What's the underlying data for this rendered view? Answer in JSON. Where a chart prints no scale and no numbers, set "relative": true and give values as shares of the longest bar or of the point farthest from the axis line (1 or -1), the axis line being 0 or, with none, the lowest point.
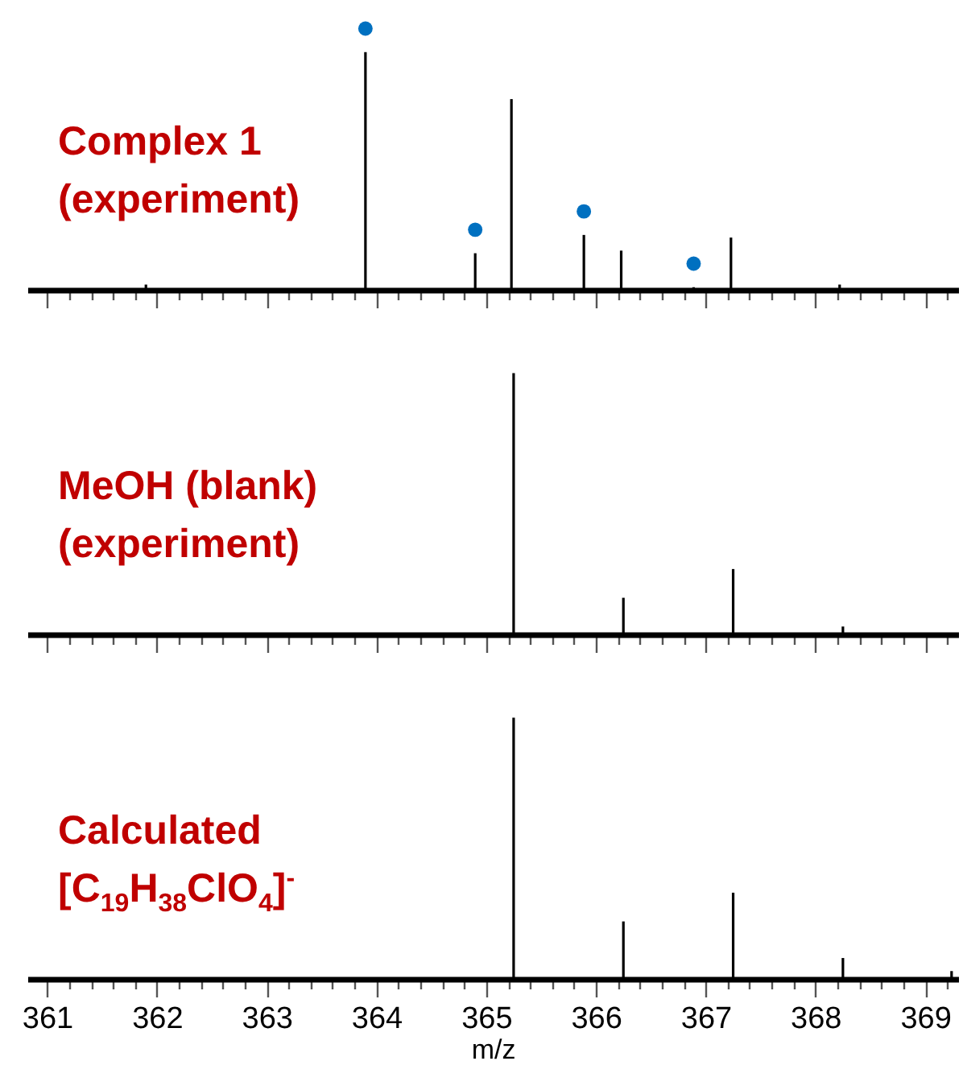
{
  "chart_data": [
    {
      "type": "bar",
      "relative": true,
      "tick_labels": false,
      "marker": "circle",
      "xlim": [
        360.82,
        369.3
      ],
      "xticks": [
        361,
        {
          "value": 361.2,
          "label": null
        },
        {
          "value": 361.4,
          "label": null
        },
        {
          "value": 361.6,
          "label": null
        },
        {
          "value": 361.8,
          "label": null
        },
        362,
        {
          "value": 362.2,
          "label": null
        },
        {
          "value": 362.4,
          "label": null
        },
        {
          "value": 362.6,
          "label": null
        },
        {
          "value": 362.8,
          "label": null
        },
        363,
        {
          "value": 363.2,
          "label": null
        },
        {
          "value": 363.4,
          "label": null
        },
        {
          "value": 363.6,
          "label": null
        },
        {
          "value": 363.8,
          "label": null
        },
        364,
        {
          "value": 364.2,
          "label": null
        },
        {
          "value": 364.4,
          "label": null
        },
        {
          "value": 364.6,
          "label": null
        },
        {
          "value": 364.8,
          "label": null
        },
        365,
        {
          "value": 365.2,
          "label": null
        },
        {
          "value": 365.4,
          "label": null
        },
        {
          "value": 365.6,
          "label": null
        },
        {
          "value": 365.8,
          "label": null
        },
        366,
        {
          "value": 366.2,
          "label": null
        },
        {
          "value": 366.4,
          "label": null
        },
        {
          "value": 366.6,
          "label": null
        },
        {
          "value": 366.8,
          "label": null
        },
        367,
        {
          "value": 367.2,
          "label": null
        },
        {
          "value": 367.4,
          "label": null
        },
        {
          "value": 367.6,
          "label": null
        },
        {
          "value": 367.8,
          "label": null
        },
        368,
        {
          "value": 368.2,
          "label": null
        },
        {
          "value": 368.4,
          "label": null
        },
        {
          "value": 368.6,
          "label": null
        },
        {
          "value": 368.8,
          "label": null
        },
        369,
        {
          "value": 369.2,
          "label": null
        }
      ],
      "annotations": [
        "Complex 1",
        "(experiment)"
      ],
      "series": [
        {
          "type": "bar",
          "color": "#000000",
          "x": [
            361.9,
            363.9,
            364.9,
            365.23,
            365.89,
            366.23,
            366.89,
            367.23,
            368.22
          ],
          "values": [
            0.02,
            0.91,
            0.14,
            0.73,
            0.21,
            0.15,
            0.01,
            0.2,
            0.02
          ]
        },
        {
          "type": "scatter",
          "color": "#0070c0",
          "x": [
            363.9,
            364.9,
            365.89,
            366.89
          ],
          "values": [
            1,
            0.23,
            0.3,
            0.1
          ]
        }
      ]
    },
    {
      "type": "bar",
      "relative": true,
      "tick_labels": false,
      "xlim": [
        360.82,
        369.3
      ],
      "xticks": [
        361,
        {
          "value": 361.2,
          "label": null
        },
        {
          "value": 361.4,
          "label": null
        },
        {
          "value": 361.6,
          "label": null
        },
        {
          "value": 361.8,
          "label": null
        },
        362,
        {
          "value": 362.2,
          "label": null
        },
        {
          "value": 362.4,
          "label": null
        },
        {
          "value": 362.6,
          "label": null
        },
        {
          "value": 362.8,
          "label": null
        },
        363,
        {
          "value": 363.2,
          "label": null
        },
        {
          "value": 363.4,
          "label": null
        },
        {
          "value": 363.6,
          "label": null
        },
        {
          "value": 363.8,
          "label": null
        },
        364,
        {
          "value": 364.2,
          "label": null
        },
        {
          "value": 364.4,
          "label": null
        },
        {
          "value": 364.6,
          "label": null
        },
        {
          "value": 364.8,
          "label": null
        },
        365,
        {
          "value": 365.2,
          "label": null
        },
        {
          "value": 365.4,
          "label": null
        },
        {
          "value": 365.6,
          "label": null
        },
        {
          "value": 365.8,
          "label": null
        },
        366,
        {
          "value": 366.2,
          "label": null
        },
        {
          "value": 366.4,
          "label": null
        },
        {
          "value": 366.6,
          "label": null
        },
        {
          "value": 366.8,
          "label": null
        },
        367,
        {
          "value": 367.2,
          "label": null
        },
        {
          "value": 367.4,
          "label": null
        },
        {
          "value": 367.6,
          "label": null
        },
        {
          "value": 367.8,
          "label": null
        },
        368,
        {
          "value": 368.2,
          "label": null
        },
        {
          "value": 368.4,
          "label": null
        },
        {
          "value": 368.6,
          "label": null
        },
        {
          "value": 368.8,
          "label": null
        },
        369,
        {
          "value": 369.2,
          "label": null
        }
      ],
      "annotations": [
        "MeOH (blank)",
        "(experiment)"
      ],
      "series": [
        {
          "type": "bar",
          "color": "#000000",
          "x": [
            365.25,
            366.25,
            367.25,
            368.25
          ],
          "values": [
            1,
            0.14,
            0.25,
            0.03
          ]
        }
      ]
    },
    {
      "type": "bar",
      "relative": true,
      "tick_labels": "x",
      "xlabel": "m/z",
      "xlim": [
        360.82,
        369.3
      ],
      "xticks": [
        361,
        {
          "value": 361.2,
          "label": null
        },
        {
          "value": 361.4,
          "label": null
        },
        {
          "value": 361.6,
          "label": null
        },
        {
          "value": 361.8,
          "label": null
        },
        362,
        {
          "value": 362.2,
          "label": null
        },
        {
          "value": 362.4,
          "label": null
        },
        {
          "value": 362.6,
          "label": null
        },
        {
          "value": 362.8,
          "label": null
        },
        363,
        {
          "value": 363.2,
          "label": null
        },
        {
          "value": 363.4,
          "label": null
        },
        {
          "value": 363.6,
          "label": null
        },
        {
          "value": 363.8,
          "label": null
        },
        364,
        {
          "value": 364.2,
          "label": null
        },
        {
          "value": 364.4,
          "label": null
        },
        {
          "value": 364.6,
          "label": null
        },
        {
          "value": 364.8,
          "label": null
        },
        365,
        {
          "value": 365.2,
          "label": null
        },
        {
          "value": 365.4,
          "label": null
        },
        {
          "value": 365.6,
          "label": null
        },
        {
          "value": 365.8,
          "label": null
        },
        366,
        {
          "value": 366.2,
          "label": null
        },
        {
          "value": 366.4,
          "label": null
        },
        {
          "value": 366.6,
          "label": null
        },
        {
          "value": 366.8,
          "label": null
        },
        367,
        {
          "value": 367.2,
          "label": null
        },
        {
          "value": 367.4,
          "label": null
        },
        {
          "value": 367.6,
          "label": null
        },
        {
          "value": 367.8,
          "label": null
        },
        368,
        {
          "value": 368.2,
          "label": null
        },
        {
          "value": 368.4,
          "label": null
        },
        {
          "value": 368.6,
          "label": null
        },
        {
          "value": 368.8,
          "label": null
        },
        369,
        {
          "value": 369.2,
          "label": null
        }
      ],
      "annotations": [
        "Calculated",
        "[C$_{19}$H$_{38}$ClO$_{4}$]$^{-}$"
      ],
      "series": [
        {
          "type": "bar",
          "color": "#000000",
          "x": [
            365.25,
            366.25,
            367.25,
            368.25,
            369.24
          ],
          "values": [
            1,
            0.22,
            0.33,
            0.08,
            0.03
          ]
        }
      ]
    }
  ]
}
